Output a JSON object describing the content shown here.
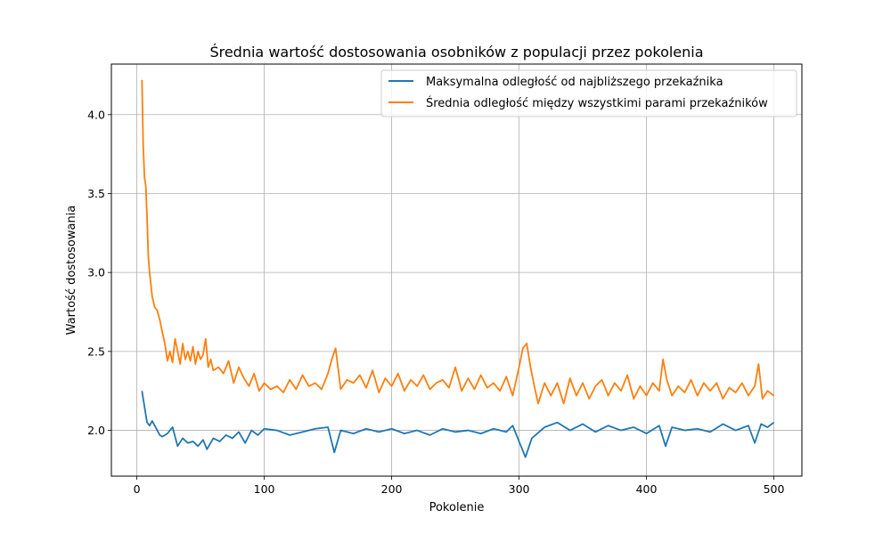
{
  "chart_data": {
    "type": "line",
    "title": "Średnia wartość dostosowania osobników z populacji przez pokolenia",
    "xlabel": "Pokolenie",
    "ylabel": "Wartość dostosowania",
    "xlim": [
      -20,
      522
    ],
    "ylim": [
      1.71,
      4.32
    ],
    "xticks": [
      0,
      100,
      200,
      300,
      400,
      500
    ],
    "yticks": [
      2.0,
      2.5,
      3.0,
      3.5,
      4.0
    ],
    "grid": true,
    "legend_position": "top-right",
    "colors": {
      "series0": "#1f77b4",
      "series1": "#ff7f0e"
    },
    "series": [
      {
        "name": "Maksymalna odległość od najbliższego przekaźnika",
        "x": [
          4,
          6,
          8,
          10,
          12,
          14,
          16,
          18,
          20,
          24,
          28,
          32,
          36,
          40,
          44,
          48,
          52,
          55,
          60,
          65,
          70,
          75,
          80,
          85,
          90,
          95,
          100,
          110,
          120,
          130,
          140,
          150,
          155,
          160,
          170,
          180,
          190,
          200,
          210,
          220,
          230,
          240,
          250,
          260,
          270,
          280,
          290,
          295,
          300,
          305,
          310,
          320,
          330,
          340,
          350,
          360,
          370,
          380,
          390,
          400,
          410,
          415,
          420,
          430,
          440,
          450,
          460,
          470,
          480,
          485,
          490,
          495,
          500
        ],
        "y": [
          2.25,
          2.15,
          2.05,
          2.03,
          2.06,
          2.03,
          2.0,
          1.97,
          1.96,
          1.98,
          2.02,
          1.9,
          1.95,
          1.92,
          1.93,
          1.9,
          1.94,
          1.88,
          1.95,
          1.93,
          1.97,
          1.95,
          1.99,
          1.92,
          2.0,
          1.97,
          2.01,
          2.0,
          1.97,
          1.99,
          2.01,
          2.02,
          1.86,
          2.0,
          1.98,
          2.01,
          1.99,
          2.01,
          1.98,
          2.0,
          1.97,
          2.01,
          1.99,
          2.0,
          1.98,
          2.01,
          1.99,
          2.03,
          1.93,
          1.83,
          1.95,
          2.02,
          2.05,
          2.0,
          2.04,
          1.99,
          2.03,
          2.0,
          2.02,
          1.98,
          2.03,
          1.9,
          2.02,
          2.0,
          2.01,
          1.99,
          2.04,
          2.0,
          2.03,
          1.92,
          2.04,
          2.02,
          2.05
        ]
      },
      {
        "name": "Średnia odległość między wszystkimi parami przekaźników",
        "x": [
          4,
          5,
          6,
          7,
          8,
          9,
          10,
          12,
          14,
          16,
          18,
          20,
          22,
          24,
          26,
          28,
          30,
          32,
          34,
          36,
          38,
          40,
          42,
          44,
          46,
          48,
          50,
          52,
          54,
          56,
          58,
          60,
          64,
          68,
          72,
          76,
          80,
          84,
          88,
          92,
          96,
          100,
          105,
          110,
          115,
          120,
          125,
          130,
          135,
          140,
          145,
          150,
          153,
          156,
          160,
          165,
          170,
          175,
          180,
          185,
          190,
          195,
          200,
          205,
          210,
          215,
          220,
          225,
          230,
          235,
          240,
          245,
          250,
          255,
          260,
          265,
          270,
          275,
          280,
          285,
          290,
          295,
          300,
          303,
          306,
          309,
          312,
          315,
          320,
          325,
          330,
          335,
          340,
          345,
          350,
          355,
          360,
          365,
          370,
          375,
          380,
          385,
          390,
          395,
          400,
          405,
          410,
          413,
          416,
          420,
          425,
          430,
          435,
          440,
          445,
          450,
          455,
          460,
          465,
          470,
          475,
          480,
          485,
          488,
          491,
          495,
          500
        ],
        "y": [
          4.22,
          3.8,
          3.6,
          3.55,
          3.35,
          3.1,
          3.0,
          2.85,
          2.78,
          2.76,
          2.7,
          2.62,
          2.55,
          2.44,
          2.5,
          2.43,
          2.58,
          2.5,
          2.42,
          2.55,
          2.45,
          2.5,
          2.44,
          2.53,
          2.42,
          2.5,
          2.45,
          2.48,
          2.58,
          2.4,
          2.45,
          2.38,
          2.4,
          2.36,
          2.44,
          2.3,
          2.4,
          2.33,
          2.28,
          2.36,
          2.25,
          2.3,
          2.26,
          2.28,
          2.24,
          2.32,
          2.26,
          2.35,
          2.28,
          2.3,
          2.26,
          2.36,
          2.45,
          2.52,
          2.26,
          2.32,
          2.3,
          2.35,
          2.27,
          2.38,
          2.24,
          2.33,
          2.28,
          2.36,
          2.25,
          2.32,
          2.28,
          2.35,
          2.26,
          2.3,
          2.32,
          2.27,
          2.4,
          2.25,
          2.33,
          2.26,
          2.35,
          2.27,
          2.3,
          2.25,
          2.34,
          2.22,
          2.4,
          2.52,
          2.55,
          2.4,
          2.28,
          2.17,
          2.3,
          2.22,
          2.3,
          2.17,
          2.33,
          2.22,
          2.3,
          2.2,
          2.28,
          2.32,
          2.22,
          2.3,
          2.25,
          2.35,
          2.2,
          2.28,
          2.22,
          2.3,
          2.25,
          2.45,
          2.32,
          2.22,
          2.28,
          2.24,
          2.32,
          2.22,
          2.3,
          2.25,
          2.3,
          2.2,
          2.27,
          2.24,
          2.3,
          2.22,
          2.28,
          2.42,
          2.2,
          2.25,
          2.22
        ]
      }
    ]
  }
}
